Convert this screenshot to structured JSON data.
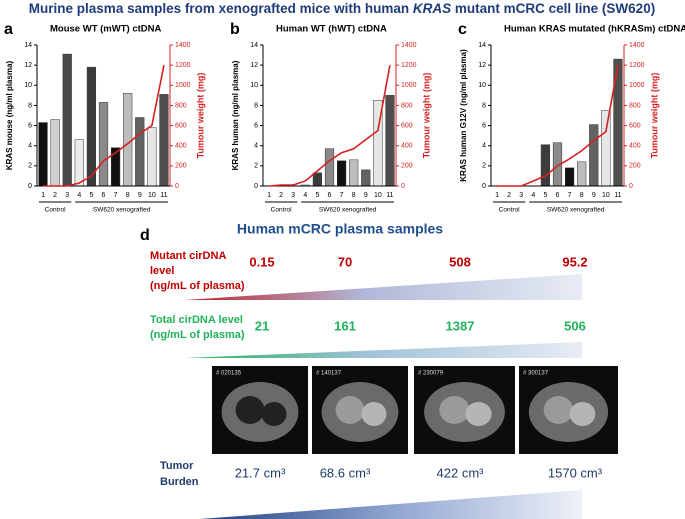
{
  "header": {
    "title_parts": [
      "Murine plasma samples from xenografted mice  with human ",
      "KRAS",
      " mutant mCRC cell line (SW620)"
    ]
  },
  "chart_data": [
    {
      "type": "bar",
      "panel": "a",
      "title": "Mouse WT (mWT) ctDNA",
      "y_label": "KRAS mouse (ng/ml plasma)",
      "y2_label": "Tumour weight (mg)",
      "categories": [
        "1",
        "2",
        "3",
        "4",
        "5",
        "6",
        "7",
        "8",
        "9",
        "10",
        "11"
      ],
      "groups": [
        "Control",
        "SW620 xenografted"
      ],
      "colors": [
        "#111111",
        "#cfcfcf",
        "#4a4a4a",
        "#ececec",
        "#3c3c3c",
        "#8a8a8a",
        "#111111",
        "#bdbdbd",
        "#626262",
        "#e6e6e6",
        "#4f4f4f"
      ],
      "values": [
        6.3,
        6.6,
        13.1,
        4.6,
        11.8,
        8.3,
        3.8,
        9.2,
        6.8,
        5.8,
        9.1
      ],
      "series": [
        {
          "color": "#d62020",
          "axis": "y2",
          "values": [
            0,
            0,
            0,
            30,
            100,
            250,
            330,
            420,
            520,
            600,
            1200
          ]
        }
      ],
      "ylim": [
        0,
        14
      ],
      "yticks": [
        0,
        2,
        4,
        6,
        8,
        10,
        12,
        14
      ],
      "y2lim": [
        0,
        1400
      ],
      "y2ticks": [
        0,
        200,
        400,
        600,
        800,
        1000,
        1200,
        1400
      ]
    },
    {
      "type": "bar",
      "panel": "b",
      "title": "Human WT (hWT) ctDNA",
      "y_label": "KRAS human (ng/ml plasma)",
      "y2_label": "Tumour weight (mg)",
      "categories": [
        "1",
        "2",
        "3",
        "4",
        "5",
        "6",
        "7",
        "8",
        "9",
        "10",
        "11"
      ],
      "groups": [
        "Control",
        "SW620 xenografted"
      ],
      "colors": [
        "#111111",
        "#cfcfcf",
        "#4a4a4a",
        "#ececec",
        "#3c3c3c",
        "#8a8a8a",
        "#111111",
        "#bdbdbd",
        "#626262",
        "#e6e6e6",
        "#4f4f4f"
      ],
      "values": [
        0,
        0.1,
        0,
        0.1,
        1.3,
        3.7,
        2.5,
        2.6,
        1.6,
        8.5,
        9.0
      ],
      "series": [
        {
          "color": "#d62020",
          "axis": "y2",
          "values": [
            0,
            10,
            10,
            50,
            150,
            250,
            330,
            370,
            460,
            550,
            1200
          ]
        }
      ],
      "ylim": [
        0,
        14
      ],
      "yticks": [
        0,
        2,
        4,
        6,
        8,
        10,
        12,
        14
      ],
      "y2lim": [
        0,
        1400
      ],
      "y2ticks": [
        0,
        200,
        400,
        600,
        800,
        1000,
        1200,
        1400
      ]
    },
    {
      "type": "bar",
      "panel": "c",
      "title": "Human KRAS mutated (hKRASm) ctDNA",
      "y_label": "KRAS human G12V (ng/ml plasma)",
      "y2_label": "Tumour weight (mg)",
      "categories": [
        "1",
        "2",
        "3",
        "4",
        "5",
        "6",
        "7",
        "8",
        "9",
        "10",
        "11"
      ],
      "groups": [
        "Control",
        "SW620 xenografted"
      ],
      "colors": [
        "#111111",
        "#cfcfcf",
        "#4a4a4a",
        "#ececec",
        "#3c3c3c",
        "#8a8a8a",
        "#111111",
        "#bdbdbd",
        "#626262",
        "#e6e6e6",
        "#4f4f4f"
      ],
      "values": [
        0,
        0,
        0,
        0,
        4.1,
        4.3,
        1.8,
        2.4,
        6.1,
        7.5,
        12.6
      ],
      "series": [
        {
          "color": "#d62020",
          "axis": "y2",
          "values": [
            0,
            0,
            0,
            50,
            100,
            200,
            270,
            350,
            450,
            540,
            1200
          ]
        }
      ],
      "ylim": [
        0,
        14
      ],
      "yticks": [
        0,
        2,
        4,
        6,
        8,
        10,
        12,
        14
      ],
      "y2lim": [
        0,
        1400
      ],
      "y2ticks": [
        0,
        200,
        400,
        600,
        800,
        1000,
        1200,
        1400
      ]
    }
  ],
  "panel_d": {
    "label": "d",
    "title": "Human mCRC plasma samples",
    "mutant": {
      "label_lines": [
        "Mutant cirDNA",
        "level",
        "(ng/mL of plasma)"
      ],
      "values": [
        "0.15",
        "70",
        "508",
        "95.2"
      ]
    },
    "total": {
      "label_lines": [
        "Total cirDNA level",
        "(ng/mL of plasma)"
      ],
      "values": [
        "21",
        "161",
        "1387",
        "506"
      ]
    },
    "image_ids": [
      "# 020135",
      "# 140137",
      "# 230079",
      "# 300137"
    ],
    "burden": {
      "label_lines": [
        "Tumor",
        "Burden"
      ],
      "values": [
        "21.7 cm³",
        "68.6 cm³",
        "422 cm³",
        "1570 cm³"
      ]
    }
  }
}
